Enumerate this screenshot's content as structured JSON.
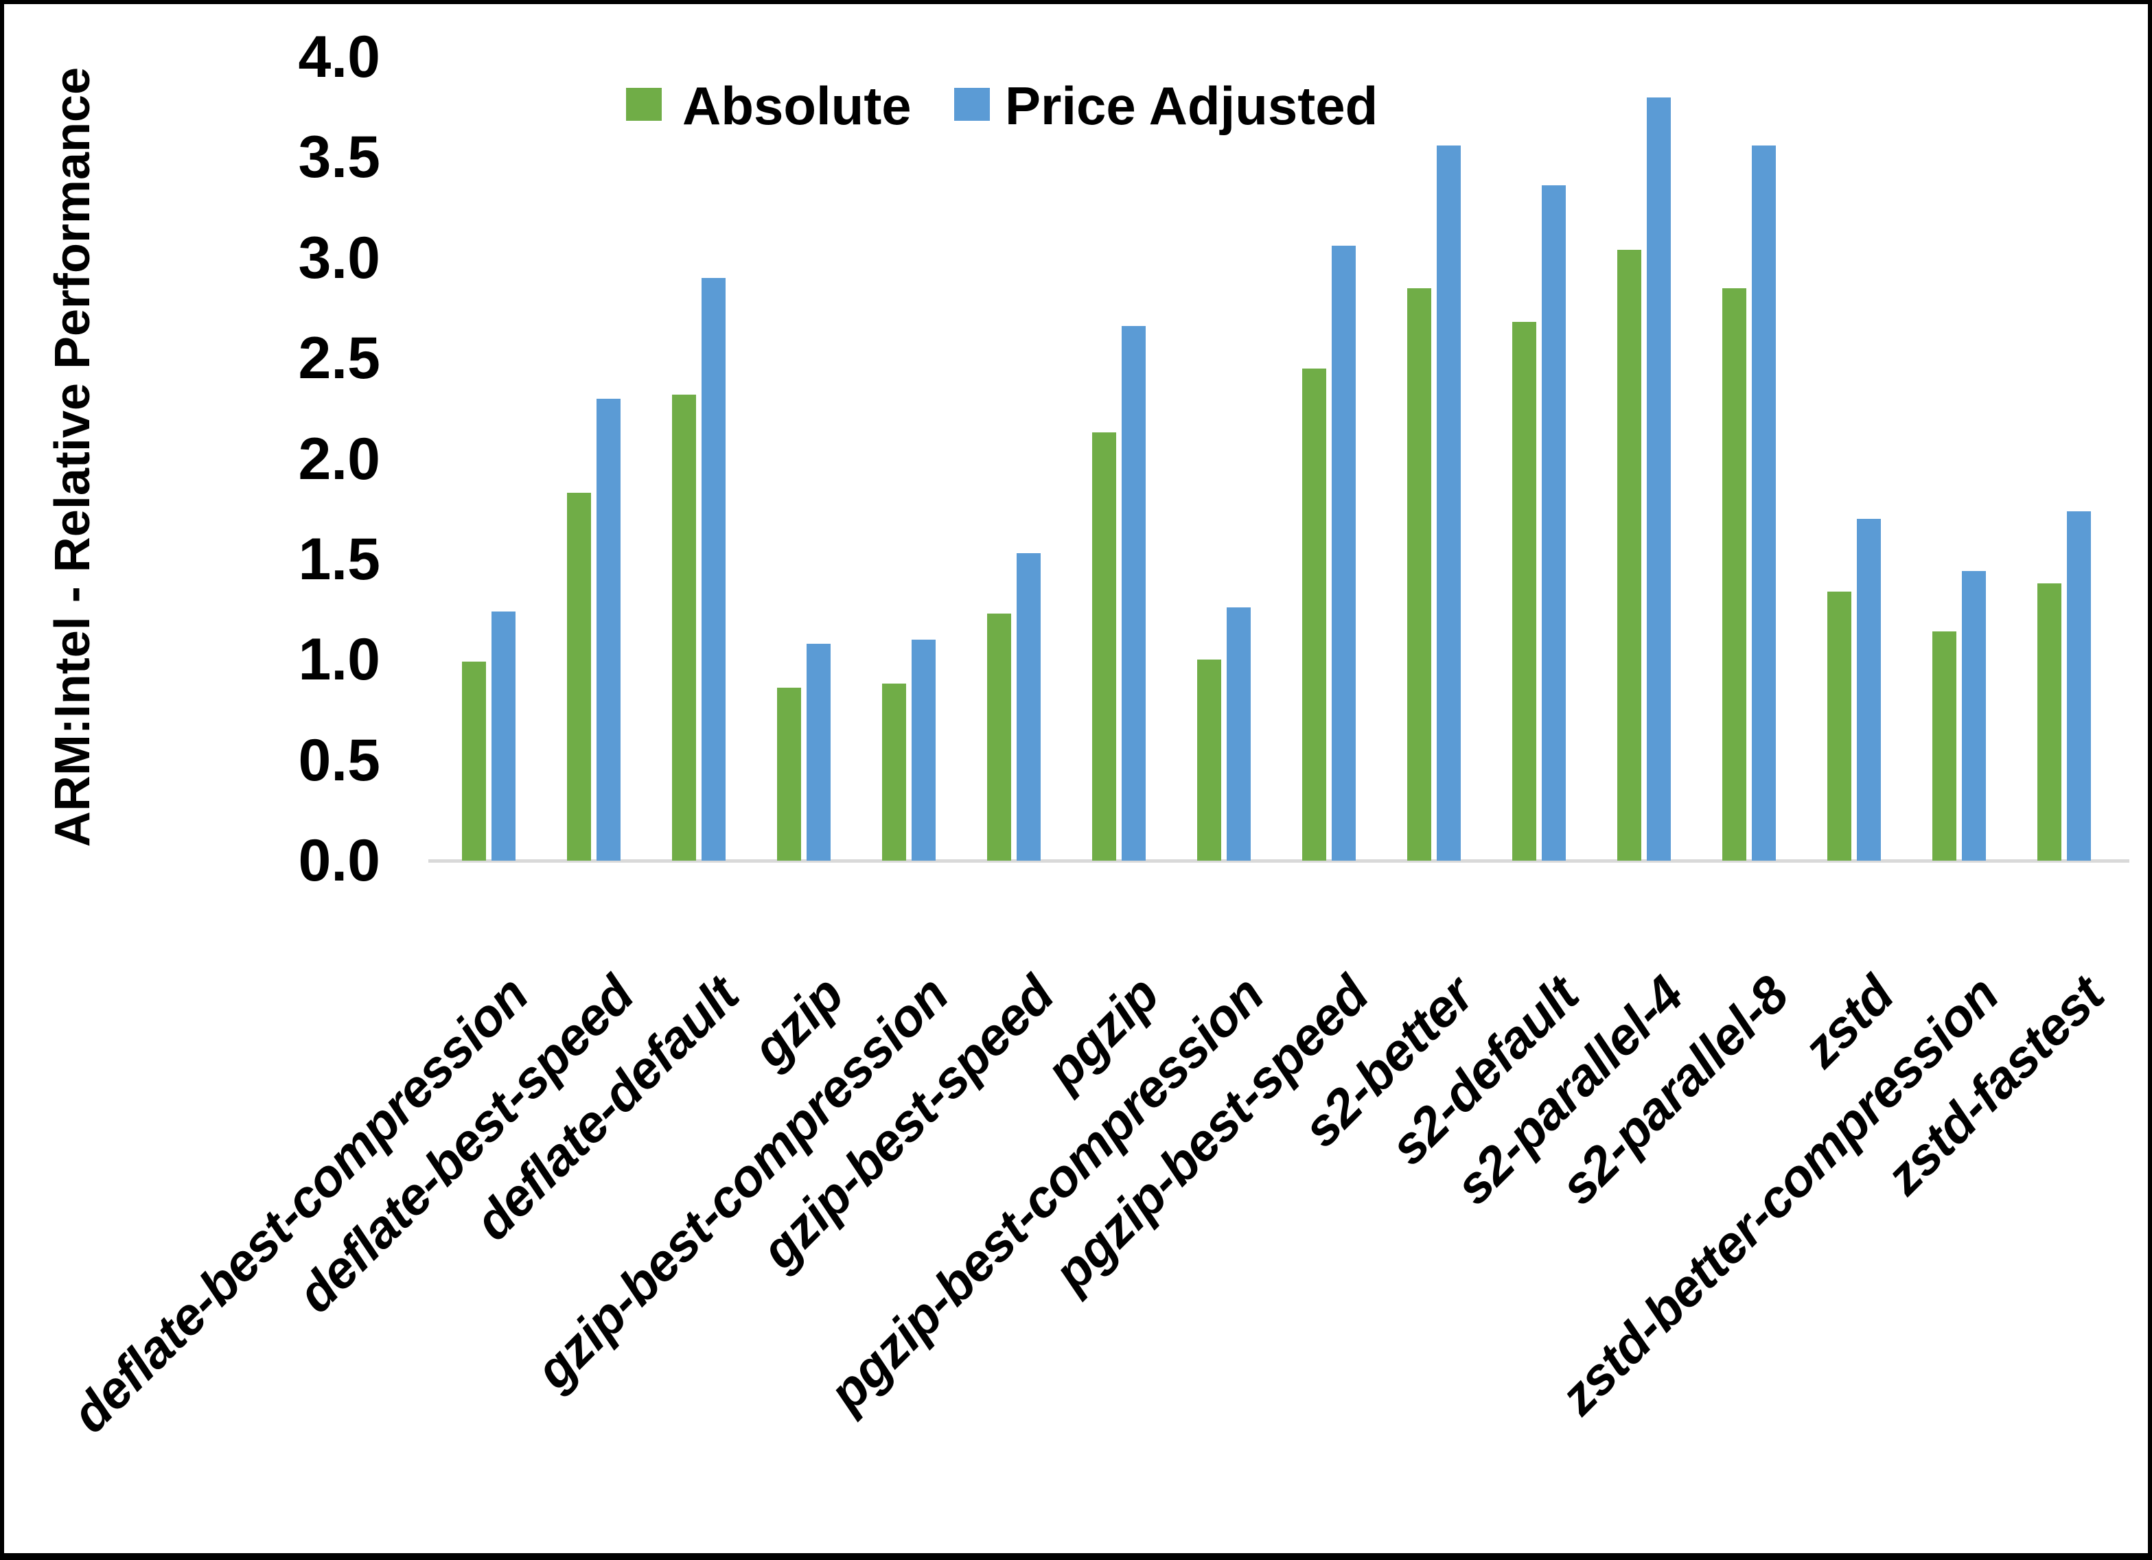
{
  "chart_data": {
    "type": "bar",
    "title": "",
    "xlabel": "",
    "ylabel": "ARM:Intel - Relative Performance",
    "ylim": [
      0.0,
      4.0
    ],
    "ytick_step": 0.5,
    "ytick_labels": [
      "0.0",
      "0.5",
      "1.0",
      "1.5",
      "2.0",
      "2.5",
      "3.0",
      "3.5",
      "4.0"
    ],
    "grid": false,
    "legend_position": "top-center",
    "categories": [
      "deflate-best-compression",
      "deflate-best-speed",
      "deflate-default",
      "gzip",
      "gzip-best-compression",
      "gzip-best-speed",
      "pgzip",
      "pgzip-best-compression",
      "pgzip-best-speed",
      "s2-better",
      "s2-default",
      "s2-parallel-4",
      "s2-parallel-8",
      "zstd",
      "zstd-better-compression",
      "zstd-fastest"
    ],
    "series": [
      {
        "name": "Absolute",
        "color": "#70AD47",
        "values": [
          0.99,
          1.83,
          2.32,
          0.86,
          0.88,
          1.23,
          2.13,
          1.0,
          2.45,
          2.85,
          2.68,
          3.04,
          2.85,
          1.34,
          1.14,
          1.38
        ]
      },
      {
        "name": "Price Adjusted",
        "color": "#5B9BD5",
        "values": [
          1.24,
          2.3,
          2.9,
          1.08,
          1.1,
          1.53,
          2.66,
          1.26,
          3.06,
          3.56,
          3.36,
          3.8,
          3.56,
          1.7,
          1.44,
          1.74
        ]
      }
    ]
  },
  "legend": {
    "items": [
      {
        "label": "Absolute",
        "color": "#70AD47"
      },
      {
        "label": "Price Adjusted",
        "color": "#5B9BD5"
      }
    ]
  },
  "axes": {
    "y_title": "ARM:Intel - Relative Performance"
  },
  "colors": {
    "absolute_green": "#70AD47",
    "price_adjusted_blue": "#5B9BD5",
    "axis_line": "#d9d9d9",
    "text": "#000000",
    "background": "#ffffff",
    "border": "#000000"
  }
}
